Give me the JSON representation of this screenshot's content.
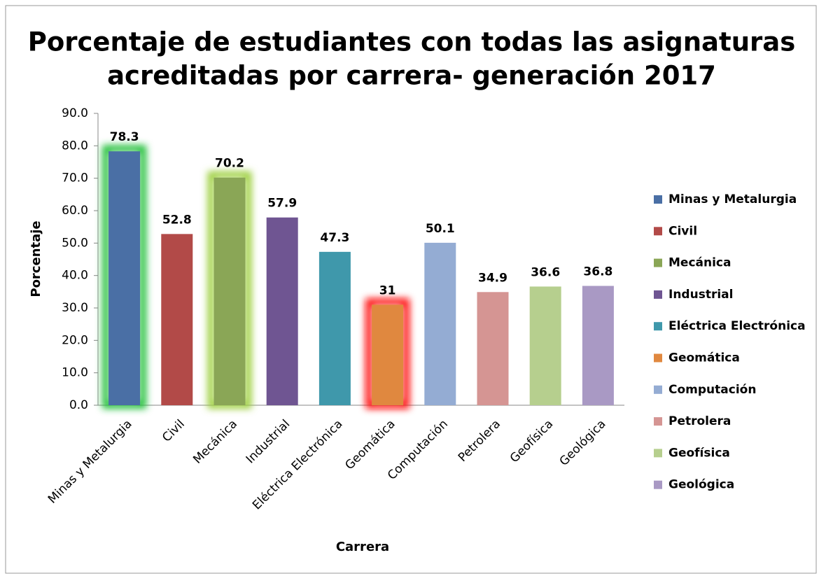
{
  "chart_data": {
    "type": "bar",
    "title": [
      "Porcentaje de estudiantes con todas las asignaturas",
      "acreditadas por carrera- generación 2017"
    ],
    "y_label": "Porcentaje",
    "x_label": "Carrera",
    "categories": [
      "Minas y Metalurgia",
      "Civil",
      "Mecánica",
      "Industrial",
      "Eléctrica Electrónica",
      "Geomática",
      "Computación",
      "Petrolera",
      "Geofísica",
      "Geológica"
    ],
    "values": [
      78.3,
      52.8,
      70.2,
      57.9,
      47.3,
      31,
      50.1,
      34.9,
      36.6,
      36.8
    ],
    "colors": [
      "#4a6fa5",
      "#b24a48",
      "#8aa656",
      "#6f5592",
      "#3f98ab",
      "#e0883f",
      "#94acd3",
      "#d59593",
      "#b6cf8e",
      "#a999c4"
    ],
    "glow": [
      "#22c03a",
      null,
      "#9ccf3c",
      null,
      null,
      "#ff1010",
      null,
      null,
      null,
      null
    ],
    "ylim": [
      0,
      90
    ],
    "yticks": [
      {
        "value": 0,
        "label": "0.0"
      },
      {
        "value": 10,
        "label": "10.0"
      },
      {
        "value": 20,
        "label": "20.0"
      },
      {
        "value": 30,
        "label": "30.0"
      },
      {
        "value": 40,
        "label": "40.0"
      },
      {
        "value": 50,
        "label": "50.0"
      },
      {
        "value": 60,
        "label": "60.0"
      },
      {
        "value": 70,
        "label": "70.0"
      },
      {
        "value": 80,
        "label": "80.0"
      },
      {
        "value": 90,
        "label": "90.0"
      }
    ],
    "grid": false,
    "legend": "right"
  }
}
